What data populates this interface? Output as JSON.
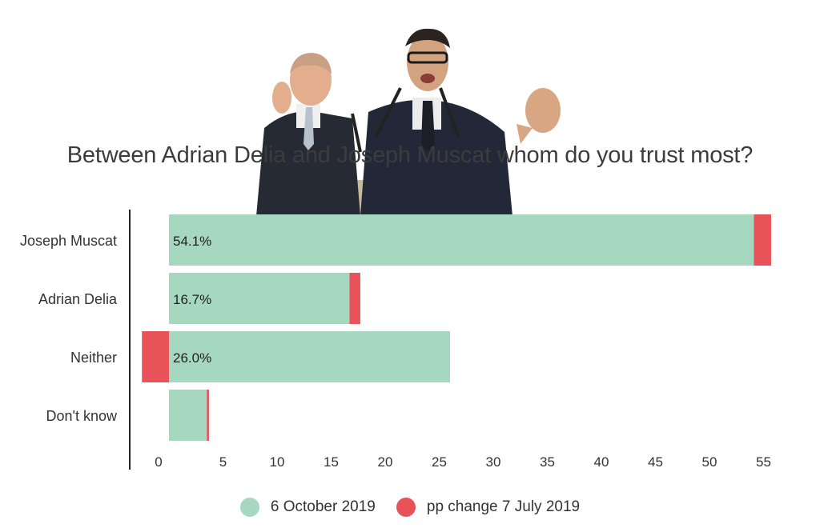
{
  "chart_data": {
    "type": "bar",
    "orientation": "horizontal",
    "stacked": true,
    "title": "Between Adrian Delia and Joseph Muscat whom do you trust most?",
    "categories": [
      "Joseph Muscat",
      "Adrian Delia",
      "Neither",
      "Don't know"
    ],
    "series": [
      {
        "name": "6 October 2019",
        "color": "#a6d8c0",
        "values": [
          54.1,
          16.7,
          26.0,
          3.5
        ],
        "data_labels": [
          "54.1%",
          "16.7%",
          "26.0%",
          ""
        ]
      },
      {
        "name": "pp change 7 July 2019",
        "color": "#e8535a",
        "values": [
          1.6,
          1.0,
          -2.5,
          0.2
        ]
      }
    ],
    "x_ticks": [
      "0",
      "5",
      "10",
      "15",
      "20",
      "25",
      "30",
      "35",
      "40",
      "45",
      "50",
      "55"
    ],
    "xlim": [
      -1.5,
      58
    ],
    "grid": false,
    "legend_position": "bottom"
  },
  "colors": {
    "bar": "#a6d8c0",
    "change": "#e8535a",
    "text": "#333333",
    "axis": "#222222"
  }
}
